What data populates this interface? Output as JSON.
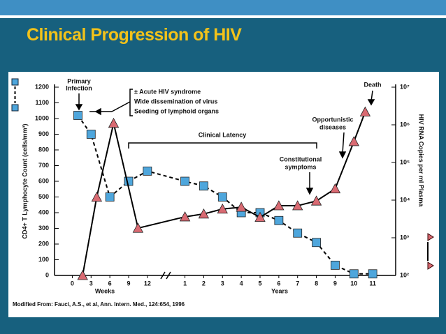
{
  "title": "Clinical Progression of HIV",
  "chart_data": {
    "type": "line",
    "y_label": "CD4+ T Lymphocyte Count (cells/mm³)",
    "y2_label": "HIV RNA Copies per ml Plasma",
    "x_labels": [
      "Weeks",
      "Years"
    ],
    "annotations": [
      "Primary",
      "Infection",
      "± Acute HIV syndrome",
      "Wide dissemination of virus",
      "Seeding of lymphoid organs",
      "Clinical Latency",
      "Constitutional",
      "symptoms",
      "Opportunistic",
      "diseases",
      "Death"
    ],
    "source": "Modified From: Fauci, A.S., et al, Ann. Intern. Med., 124:654, 1996",
    "xlim": [
      -0.5,
      17
    ],
    "xticks": [
      0,
      {
        "value": 1,
        "label": "3"
      },
      {
        "value": 2,
        "label": "6"
      },
      {
        "value": 3,
        "label": "9"
      },
      {
        "value": 4,
        "label": "12"
      },
      {
        "value": 6,
        "label": "1"
      },
      {
        "value": 7,
        "label": "2"
      },
      {
        "value": 8,
        "label": "3"
      },
      {
        "value": 9,
        "label": "4"
      },
      {
        "value": 10,
        "label": "5"
      },
      {
        "value": 11,
        "label": "6"
      },
      {
        "value": 12,
        "label": "7"
      },
      {
        "value": 13,
        "label": "8"
      },
      {
        "value": 14,
        "label": "9"
      },
      {
        "value": 15,
        "label": "10"
      },
      {
        "value": 16,
        "label": "11"
      }
    ],
    "ylim": [
      0,
      1200
    ],
    "yticks": [
      0,
      100,
      200,
      300,
      400,
      500,
      600,
      700,
      800,
      900,
      1000,
      1100,
      1200
    ],
    "y2scale": "log",
    "y2lim": [
      100,
      10000000
    ],
    "y2ticks": [
      {
        "value": 100,
        "label": "10²"
      },
      {
        "value": 1000,
        "label": "10³"
      },
      {
        "value": 10000,
        "label": "10⁴"
      },
      {
        "value": 100000,
        "label": "10⁵"
      },
      {
        "value": 1000000,
        "label": "10⁶"
      },
      {
        "value": 10000000,
        "label": "10⁷"
      }
    ],
    "series": [
      {
        "color": "#4ea6dc",
        "marker": "square",
        "dash": "dashed",
        "x": [
          0.3,
          1,
          2,
          3,
          4,
          6,
          7,
          8,
          9,
          10,
          11,
          12,
          13,
          14,
          15,
          16
        ],
        "values": [
          1020,
          900,
          500,
          600,
          665,
          600,
          570,
          500,
          400,
          400,
          350,
          270,
          210,
          65,
          10,
          10
        ]
      },
      {
        "color": "#d96a72",
        "marker": "triangle",
        "dash": "solid",
        "axis": "y2",
        "x": [
          0.55,
          1.3,
          2.2,
          3.5,
          6,
          7,
          8,
          9,
          10,
          11,
          12,
          13,
          14,
          15,
          15.6
        ],
        "values": [
          100,
          12000,
          1100000,
          1800,
          3600,
          4300,
          5800,
          6500,
          3500,
          7100,
          7100,
          9500,
          20000,
          360000,
          2200000
        ]
      }
    ]
  }
}
